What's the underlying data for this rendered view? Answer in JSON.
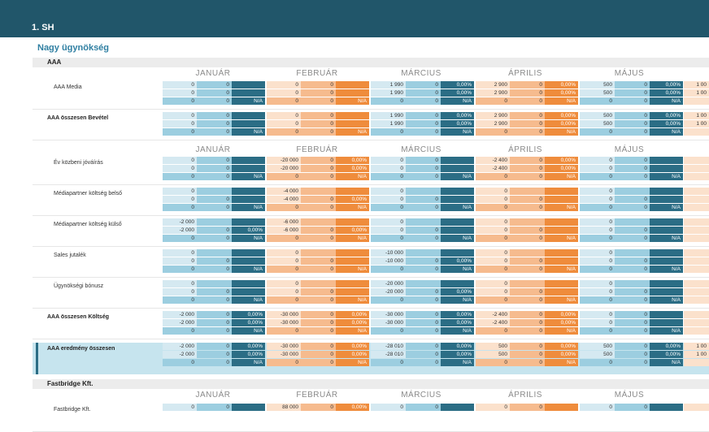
{
  "title": "1. SH",
  "agency": "Nagy ügynökség",
  "months": [
    "JANUÁR",
    "FEBRUÁR",
    "MÁRCIUS",
    "ÁPRILIS",
    "MÁJUS"
  ],
  "sections": [
    {
      "header": "AAA"
    },
    {
      "header": "Fastbridge Kft."
    }
  ],
  "blocks": [
    {
      "rows": [
        {
          "label": "AAA Media",
          "bold": false,
          "cells": [
            [
              "0",
              "0",
              "",
              "0",
              "0",
              "",
              "1 990",
              "0",
              "0,00%",
              "2 900",
              "0",
              "0,00%",
              "500",
              "0",
              "0,00%",
              "1 00"
            ],
            [
              "0",
              "0",
              "",
              "0",
              "0",
              "",
              "1 990",
              "0",
              "0,00%",
              "2 900",
              "0",
              "0,00%",
              "500",
              "0",
              "0,00%",
              "1 00"
            ],
            [
              "0",
              "0",
              "N/A",
              "0",
              "0",
              "N/A",
              "0",
              "0",
              "N/A",
              "0",
              "0",
              "N/A",
              "0",
              "0",
              "N/A",
              ""
            ]
          ]
        },
        {
          "label": "AAA összesen Bevétel",
          "bold": true,
          "cells": [
            [
              "0",
              "0",
              "",
              "0",
              "0",
              "",
              "1 990",
              "0",
              "0,00%",
              "2 900",
              "0",
              "0,00%",
              "500",
              "0",
              "0,00%",
              "1 00"
            ],
            [
              "0",
              "0",
              "",
              "0",
              "0",
              "",
              "1 990",
              "0",
              "0,00%",
              "2 900",
              "0",
              "0,00%",
              "500",
              "0",
              "0,00%",
              "1 00"
            ],
            [
              "0",
              "0",
              "N/A",
              "0",
              "0",
              "N/A",
              "0",
              "0",
              "N/A",
              "0",
              "0",
              "N/A",
              "0",
              "0",
              "N/A",
              ""
            ]
          ]
        }
      ]
    },
    {
      "rows": [
        {
          "label": "Év közbeni jóváírás",
          "bold": false,
          "cells": [
            [
              "0",
              "0",
              "",
              "-20 000",
              "0",
              "0,00%",
              "0",
              "0",
              "",
              "-2 400",
              "0",
              "0,00%",
              "0",
              "0",
              "",
              ""
            ],
            [
              "0",
              "0",
              "",
              "-20 000",
              "0",
              "0,00%",
              "0",
              "0",
              "",
              "-2 400",
              "0",
              "0,00%",
              "0",
              "0",
              "",
              ""
            ],
            [
              "0",
              "0",
              "N/A",
              "0",
              "0",
              "N/A",
              "0",
              "0",
              "N/A",
              "0",
              "0",
              "N/A",
              "0",
              "0",
              "N/A",
              ""
            ]
          ]
        },
        {
          "label": "Médiapartner költség belső",
          "bold": false,
          "cells": [
            [
              "0",
              "",
              "",
              "-4 000",
              "",
              "",
              "0",
              "",
              "",
              "0",
              "",
              "",
              "0",
              "",
              "",
              ""
            ],
            [
              "0",
              "0",
              "",
              "-4 000",
              "0",
              "0,00%",
              "0",
              "0",
              "",
              "0",
              "0",
              "",
              "0",
              "0",
              "",
              ""
            ],
            [
              "0",
              "0",
              "N/A",
              "0",
              "0",
              "N/A",
              "0",
              "0",
              "N/A",
              "0",
              "0",
              "N/A",
              "0",
              "0",
              "N/A",
              ""
            ]
          ]
        },
        {
          "label": "Médiapartner költség külső",
          "bold": false,
          "cells": [
            [
              "-2 000",
              "",
              "",
              "-6 000",
              "",
              "",
              "0",
              "",
              "",
              "0",
              "",
              "",
              "0",
              "",
              "",
              ""
            ],
            [
              "-2 000",
              "0",
              "0,00%",
              "-6 000",
              "0",
              "0,00%",
              "0",
              "0",
              "",
              "0",
              "0",
              "",
              "0",
              "0",
              "",
              ""
            ],
            [
              "0",
              "0",
              "N/A",
              "0",
              "0",
              "N/A",
              "0",
              "0",
              "N/A",
              "0",
              "0",
              "N/A",
              "0",
              "0",
              "N/A",
              ""
            ]
          ]
        },
        {
          "label": "Sales jutalék",
          "bold": false,
          "cells": [
            [
              "0",
              "",
              "",
              "0",
              "",
              "",
              "-10 000",
              "",
              "",
              "0",
              "",
              "",
              "0",
              "",
              "",
              ""
            ],
            [
              "0",
              "0",
              "",
              "0",
              "0",
              "",
              "-10 000",
              "0",
              "0,00%",
              "0",
              "0",
              "",
              "0",
              "0",
              "",
              ""
            ],
            [
              "0",
              "0",
              "N/A",
              "0",
              "0",
              "N/A",
              "0",
              "0",
              "N/A",
              "0",
              "0",
              "N/A",
              "0",
              "0",
              "N/A",
              ""
            ]
          ]
        },
        {
          "label": "Ügynökségi bónusz",
          "bold": false,
          "cells": [
            [
              "0",
              "",
              "",
              "0",
              "",
              "",
              "-20 000",
              "",
              "",
              "0",
              "",
              "",
              "0",
              "",
              "",
              ""
            ],
            [
              "0",
              "0",
              "",
              "0",
              "0",
              "",
              "-20 000",
              "0",
              "0,00%",
              "0",
              "0",
              "",
              "0",
              "0",
              "",
              ""
            ],
            [
              "0",
              "0",
              "N/A",
              "0",
              "0",
              "N/A",
              "0",
              "0",
              "N/A",
              "0",
              "0",
              "N/A",
              "0",
              "0",
              "N/A",
              ""
            ]
          ]
        },
        {
          "label": "AAA összesen Költség",
          "bold": true,
          "cells": [
            [
              "-2 000",
              "0",
              "0,00%",
              "-30 000",
              "0",
              "0,00%",
              "-30 000",
              "0",
              "0,00%",
              "-2 400",
              "0",
              "0,00%",
              "0",
              "0",
              "",
              ""
            ],
            [
              "-2 000",
              "0",
              "0,00%",
              "-30 000",
              "0",
              "0,00%",
              "-30 000",
              "0",
              "0,00%",
              "-2 400",
              "0",
              "0,00%",
              "0",
              "0",
              "",
              ""
            ],
            [
              "0",
              "0",
              "N/A",
              "0",
              "0",
              "N/A",
              "0",
              "0",
              "N/A",
              "0",
              "0",
              "N/A",
              "0",
              "0",
              "N/A",
              ""
            ]
          ]
        },
        {
          "label": "AAA eredmény összesen",
          "bold": true,
          "highlight": true,
          "cells": [
            [
              "-2 000",
              "0",
              "0,00%",
              "-30 000",
              "0",
              "0,00%",
              "-28 010",
              "0",
              "0,00%",
              "500",
              "0",
              "0,00%",
              "500",
              "0",
              "0,00%",
              "1 00"
            ],
            [
              "-2 000",
              "0",
              "0,00%",
              "-30 000",
              "0",
              "0,00%",
              "-28 010",
              "0",
              "0,00%",
              "500",
              "0",
              "0,00%",
              "500",
              "0",
              "0,00%",
              "1 00"
            ],
            [
              "0",
              "0",
              "N/A",
              "0",
              "0",
              "N/A",
              "0",
              "0",
              "N/A",
              "0",
              "0",
              "N/A",
              "0",
              "0",
              "N/A",
              ""
            ]
          ]
        }
      ]
    },
    {
      "rows": [
        {
          "label": "Fastbridge Kft.",
          "bold": false,
          "cells": [
            [
              "0",
              "0",
              "",
              "88 000",
              "0",
              "0,00%",
              "0",
              "0",
              "",
              "0",
              "0",
              "",
              "0",
              "0",
              "",
              ""
            ]
          ]
        }
      ]
    }
  ],
  "colors": {
    "blue_light": "#d5e9f1",
    "blue_mid": "#9ccee0",
    "blue_dark": "#2b6d85",
    "orange_light": "#fbe1cc",
    "orange_mid": "#f6bb8e",
    "orange_dark": "#ef8c3c",
    "topbar": "#21566a",
    "agency": "#2f7fa2"
  }
}
